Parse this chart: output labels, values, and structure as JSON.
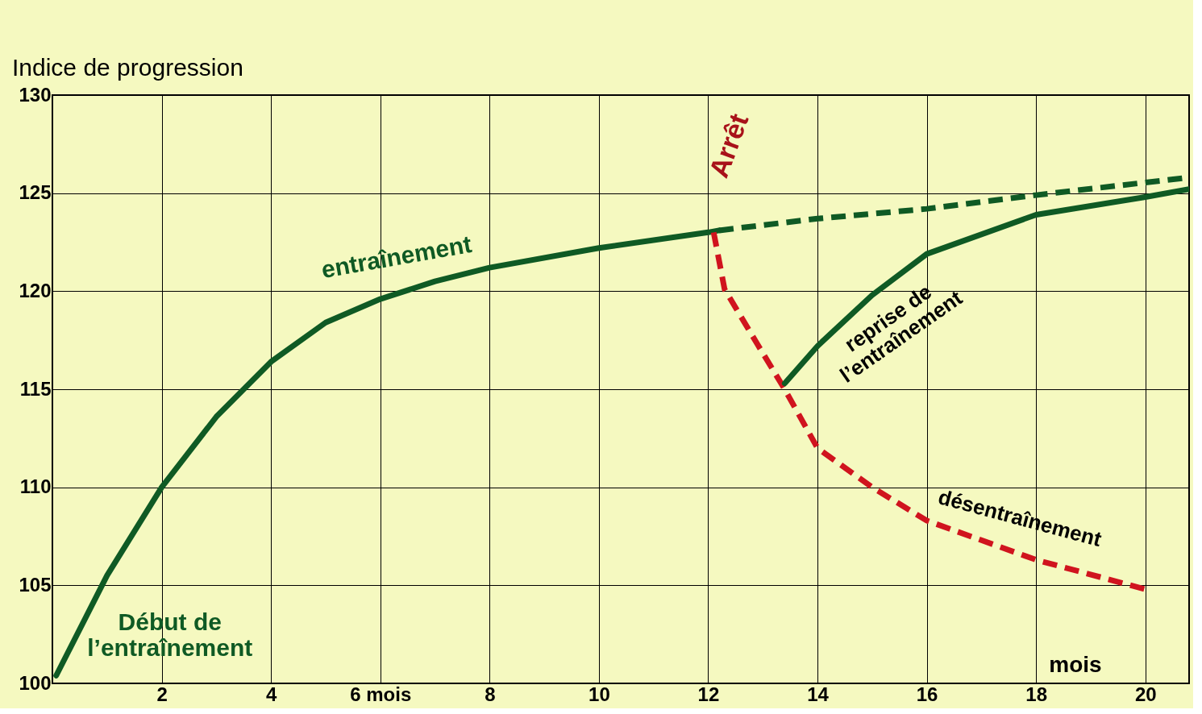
{
  "chart_data": {
    "type": "line",
    "ylabel": "Indice de progression",
    "xlabel": "mois",
    "xlim": [
      0,
      20.8
    ],
    "ylim": [
      100,
      130
    ],
    "xticks": [
      2,
      4,
      {
        "value": 6,
        "label": "6 mois"
      },
      8,
      10,
      12,
      14,
      16,
      18,
      20
    ],
    "yticks": [
      100,
      105,
      110,
      115,
      120,
      125,
      130
    ],
    "grid": true,
    "marker": "none",
    "series": [
      {
        "name": "entraînement",
        "color": "#0f5a24",
        "line_style": "solid",
        "x": [
          0.07,
          1.0,
          2.0,
          3.0,
          4.0,
          5.0,
          6.0,
          7.0,
          8.0,
          10.0,
          12.0,
          12.2
        ],
        "values": [
          100.4,
          105.5,
          110.0,
          113.6,
          116.4,
          118.4,
          119.6,
          120.5,
          121.2,
          122.2,
          123.0,
          123.1
        ]
      },
      {
        "color": "#0f5a24",
        "line_style": "dashed",
        "x": [
          12.2,
          14.0,
          16.0,
          18.0,
          20.8
        ],
        "values": [
          123.1,
          123.7,
          124.2,
          124.9,
          125.8
        ]
      },
      {
        "name": "désentraînement",
        "color": "#d0141e",
        "line_style": "dashed",
        "x": [
          12.1,
          12.3,
          12.9,
          13.4,
          14.0,
          15.0,
          16.0,
          18.0,
          20.0
        ],
        "values": [
          123.0,
          120.1,
          117.3,
          115.0,
          112.0,
          110.0,
          108.3,
          106.3,
          104.8
        ]
      },
      {
        "name": "reprise de\nl’entraînement",
        "color": "#0f5a24",
        "line_style": "solid",
        "x": [
          13.4,
          14.0,
          15.0,
          16.0,
          18.0,
          20.0,
          20.8
        ],
        "values": [
          115.3,
          117.2,
          119.8,
          121.9,
          123.9,
          124.8,
          125.2
        ]
      }
    ],
    "annotations": [
      "Début de\nl’entraînement",
      "Arrêt"
    ]
  }
}
